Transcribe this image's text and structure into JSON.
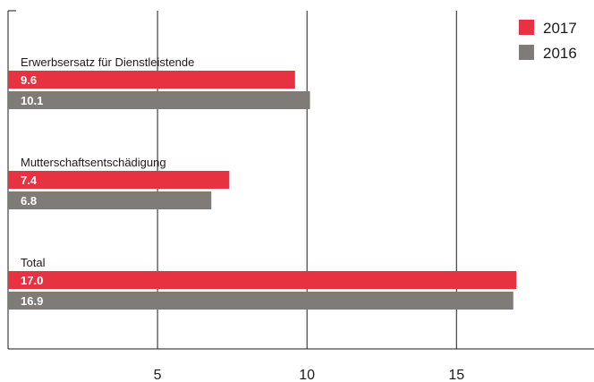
{
  "chart_data": {
    "type": "bar",
    "orientation": "horizontal",
    "categories": [
      "Erwerbsersatz für Dienstleistende",
      "Mutterschaftsentschädigung",
      "Total"
    ],
    "series": [
      {
        "name": "2017",
        "color": "#e63241",
        "values": [
          9.6,
          7.4,
          17.0
        ],
        "labels": [
          "9.6",
          "7.4",
          "17.0"
        ]
      },
      {
        "name": "2016",
        "color": "#7f7b76",
        "values": [
          10.1,
          6.8,
          16.9
        ],
        "labels": [
          "10.1",
          "6.8",
          "16.9"
        ]
      }
    ],
    "xticks": [
      5,
      10,
      15
    ],
    "xlim": [
      0,
      19.6
    ],
    "grid": "vertical",
    "legend": "top-right"
  }
}
